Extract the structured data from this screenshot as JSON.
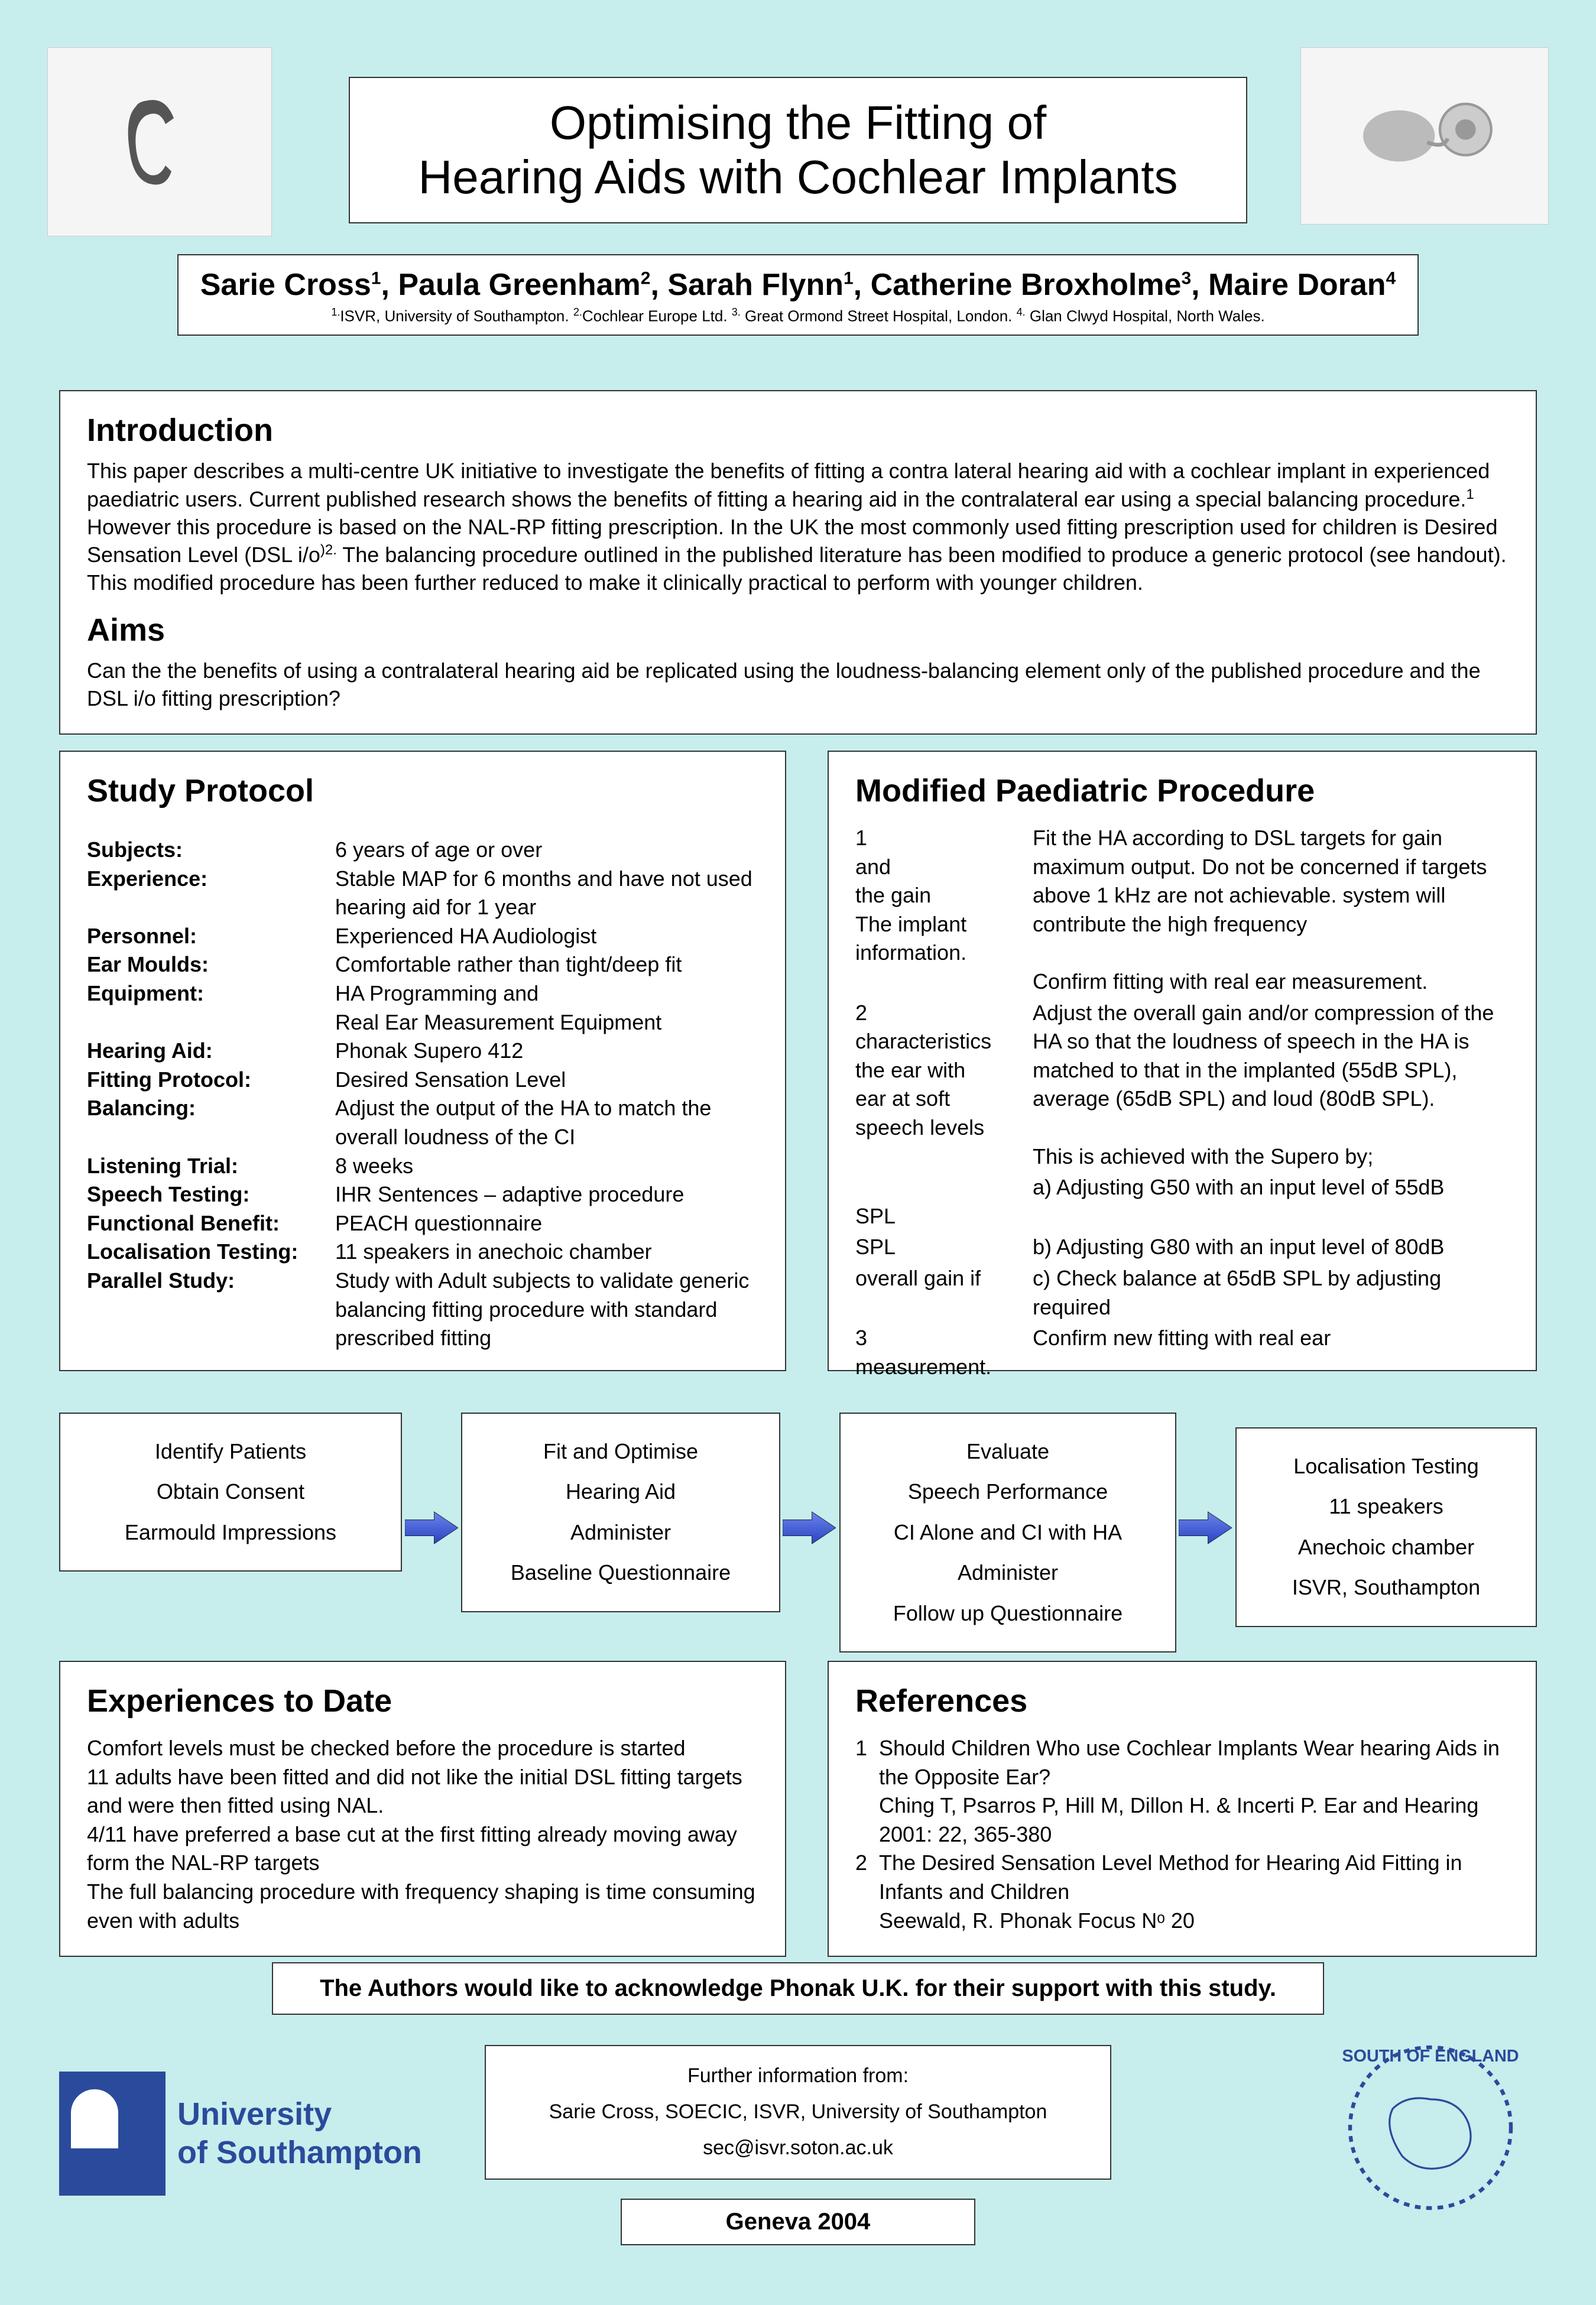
{
  "colors": {
    "background": "#c7eded",
    "box_bg": "#ffffff",
    "border": "#333333",
    "arrow_fill": "#3a57d6",
    "univ_blue": "#2a4b9b"
  },
  "title": {
    "line1": "Optimising the Fitting of",
    "line2": "Hearing Aids with Cochlear Implants"
  },
  "authors": {
    "html": "Sarie Cross<sup>1</sup>, Paula Greenham<sup>2</sup>, Sarah Flynn<sup>1</sup>, Catherine  Broxholme<sup>3</sup>, Maire Doran<sup>4</sup>",
    "affil_html": "<sup>1.</sup>ISVR, University of Southampton. <sup>2.</sup>Cochlear Europe Ltd. <sup>3.</sup> Great Ormond Street Hospital, London. <sup>4.</sup> Glan Clwyd Hospital, North Wales."
  },
  "intro": {
    "heading": "Introduction",
    "body_html": "This paper describes a multi-centre UK initiative to investigate the benefits of fitting a contra lateral hearing aid with a cochlear implant in experienced paediatric users. Current published research shows the benefits of fitting a hearing aid in the contralateral ear using a special balancing procedure.<sup>1</sup> However this procedure is based on the NAL-RP fitting prescription. In the UK the most commonly used fitting prescription used for children is Desired Sensation Level (DSL i/o<sup>)2.</sup> The balancing procedure outlined in the published literature has been modified to produce a generic protocol (see handout). This modified procedure has been further reduced to make it clinically practical to perform with younger children.",
    "aims_heading": "Aims",
    "aims_body": "Can the the benefits of using a contralateral hearing aid be replicated using the loudness-balancing element only of the published procedure and the DSL i/o fitting prescription?"
  },
  "study": {
    "heading": "Study Protocol",
    "rows": [
      {
        "label": "Subjects:",
        "value": "6 years of age or over"
      },
      {
        "label": "Experience:",
        "value": "Stable MAP for 6 months and have not used hearing aid for 1 year"
      },
      {
        "label": "Personnel:",
        "value": "Experienced HA Audiologist"
      },
      {
        "label": "Ear Moulds:",
        "value": "Comfortable rather than tight/deep fit"
      },
      {
        "label": "Equipment:",
        "value": "HA Programming and\nReal Ear Measurement Equipment"
      },
      {
        "label": "Hearing Aid:",
        "value": "Phonak Supero 412"
      },
      {
        "label": "Fitting Protocol:",
        "value": "Desired Sensation Level"
      },
      {
        "label": "Balancing:",
        "value": "Adjust the output of the HA to match the overall loudness of the CI"
      },
      {
        "label": "Listening Trial:",
        "value": "8 weeks"
      },
      {
        "label": "Speech Testing:",
        "value": "IHR Sentences – adaptive procedure"
      },
      {
        "label": "Functional Benefit:",
        "value": "PEACH questionnaire"
      },
      {
        "label": "Localisation Testing:",
        "value": "11 speakers in anechoic chamber"
      },
      {
        "label": "Parallel Study:",
        "value": "Study with Adult subjects to validate generic balancing fitting procedure with standard prescribed fitting"
      }
    ]
  },
  "proc": {
    "heading": "Modified Paediatric Procedure",
    "rows": [
      {
        "left": "1\nand\nthe gain\nThe implant\ninformation.",
        "right": "Fit the HA according to DSL targets for gain maximum output.  Do not be concerned if targets above 1 kHz are not achievable.  system will contribute the high frequency\n\nConfirm fitting with real ear measurement."
      },
      {
        "left": "2\ncharacteristics\nthe ear with\near at soft\nspeech levels",
        "right": "Adjust the overall gain and/or compression of the HA so that the loudness of speech in the HA is matched to that in the implanted (55dB SPL), average (65dB SPL) and loud (80dB SPL).\n\nThis is achieved with the Supero by;"
      },
      {
        "left": "\nSPL",
        "right": "a) Adjusting  G50 with an input level of 55dB"
      },
      {
        "left": "SPL",
        "right": "b) Adjusting  G80 with an input level of 80dB"
      },
      {
        "left": "overall gain if",
        "right": "c) Check balance at 65dB SPL by adjusting\n    required"
      },
      {
        "left": "3\nmeasurement.",
        "right": "Confirm new fitting with real ear"
      }
    ]
  },
  "flow": {
    "b1": "Identify Patients\nObtain Consent\nEarmould Impressions",
    "b2": "Fit and Optimise\nHearing Aid\nAdminister\nBaseline Questionnaire",
    "b3": "Evaluate\nSpeech Performance\nCI Alone and CI with HA\nAdminister\nFollow up Questionnaire",
    "b4": "Localisation Testing\n11 speakers\nAnechoic chamber\nISVR, Southampton"
  },
  "exp": {
    "heading": "Experiences to Date",
    "body": "Comfort levels must be checked before the procedure is started\n11 adults have been fitted and did not like the initial DSL fitting targets and were then fitted using NAL.\n4/11 have preferred a base cut at the first fitting already moving away form the NAL-RP targets\nThe full balancing procedure with frequency shaping is time consuming even with adults"
  },
  "refs": {
    "heading": "References",
    "items": [
      {
        "num": "1",
        "text": "Should Children Who use Cochlear Implants Wear hearing Aids in the Opposite Ear?\nChing T, Psarros P, Hill M, Dillon H. & Incerti P.  Ear and Hearing 2001: 22, 365-380"
      },
      {
        "num": "2",
        "text": "The Desired Sensation Level Method for Hearing Aid Fitting in Infants and Children\nSeewald, R.  Phonak Focus Nᵒ 20"
      }
    ]
  },
  "ack": "The Authors would like to acknowledge Phonak U.K. for their support with this study.",
  "info": {
    "line1": "Further information from:",
    "line2": "Sarie Cross, SOECIC, ISVR, University of Southampton",
    "line3": "sec@isvr.soton.ac.uk"
  },
  "geneva": "Geneva 2004",
  "univ_logo": {
    "line1": "University",
    "line2": "of Southampton"
  }
}
